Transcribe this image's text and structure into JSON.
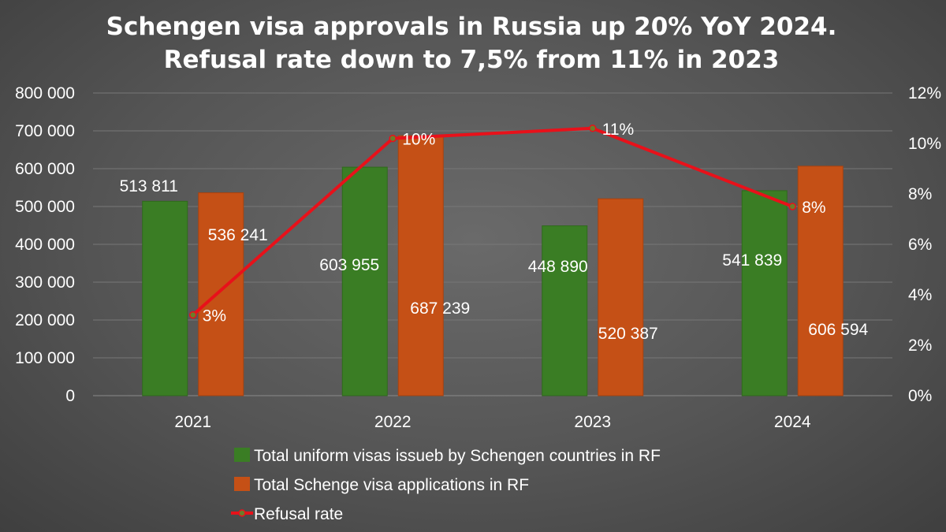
{
  "chart_data": {
    "type": "bar",
    "title_lines": [
      "Schengen visa approvals in Russia up 20% YoY 2024.",
      "Refusal rate down to 7,5% from 11% in 2023"
    ],
    "categories": [
      "2021",
      "2022",
      "2023",
      "2024"
    ],
    "series": [
      {
        "name": "Total uniform visas issueb by Schengen countries in RF",
        "type": "bar",
        "axis": "left",
        "color": "#3a7d24",
        "values": [
          513811,
          603955,
          448890,
          541839
        ],
        "labels": [
          "513 811",
          "603 955",
          "448 890",
          "541 839"
        ]
      },
      {
        "name": "Total Schenge visa applications in RF",
        "type": "bar",
        "axis": "left",
        "color": "#c55016",
        "values": [
          536241,
          687239,
          520387,
          606594
        ],
        "labels": [
          "536 241",
          "687 239",
          "520 387",
          "606 594"
        ]
      },
      {
        "name": "Refusal rate",
        "type": "line",
        "axis": "right",
        "color": "#e8111a",
        "marker_color": "#6b7d2a",
        "values": [
          3.2,
          10.2,
          10.6,
          7.5
        ],
        "labels": [
          "3%",
          "10%",
          "11%",
          "8%"
        ]
      }
    ],
    "y_left": {
      "ylim": [
        0,
        800000
      ],
      "ticks": [
        0,
        100000,
        200000,
        300000,
        400000,
        500000,
        600000,
        700000,
        800000
      ],
      "tick_labels": [
        "0",
        "100 000",
        "200 000",
        "300 000",
        "400 000",
        "500 000",
        "600 000",
        "700 000",
        "800 000"
      ]
    },
    "y_right": {
      "ylim": [
        0,
        12
      ],
      "ticks": [
        0,
        2,
        4,
        6,
        8,
        10,
        12
      ],
      "tick_labels": [
        "0%",
        "2%",
        "4%",
        "6%",
        "8%",
        "10%",
        "12%"
      ]
    },
    "grid": true,
    "legend_position": "bottom"
  }
}
